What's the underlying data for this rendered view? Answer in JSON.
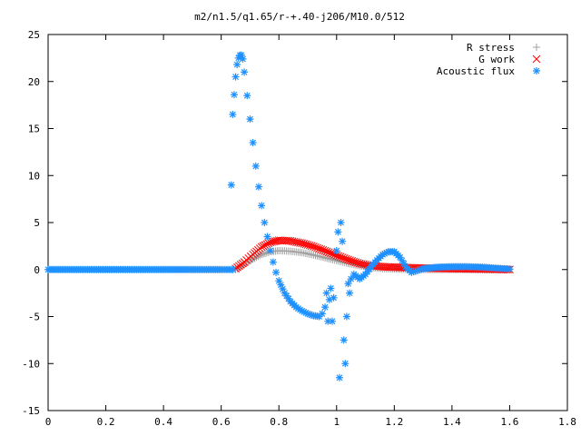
{
  "chart_data": {
    "type": "scatter",
    "title": "m2/n1.5/q1.65/r-+.40-j206/M10.0/512",
    "xlabel": "",
    "ylabel": "",
    "xlim": [
      0,
      1.8
    ],
    "ylim": [
      -15,
      25
    ],
    "xticks": [
      "0",
      "0.2",
      "0.4",
      "0.6",
      "0.8",
      "1",
      "1.2",
      "1.4",
      "1.6",
      "1.8"
    ],
    "yticks": [
      "-15",
      "-10",
      "-5",
      "0",
      "5",
      "10",
      "15",
      "20",
      "25"
    ],
    "legend_position": "top-right",
    "series": [
      {
        "name": "R stress",
        "marker": "plus",
        "color": "#a0a0a0",
        "points": [
          [
            0.65,
            0.0
          ],
          [
            0.68,
            0.5
          ],
          [
            0.71,
            1.1
          ],
          [
            0.74,
            1.6
          ],
          [
            0.77,
            1.9
          ],
          [
            0.8,
            2.0
          ],
          [
            0.84,
            1.95
          ],
          [
            0.88,
            1.8
          ],
          [
            0.92,
            1.55
          ],
          [
            0.96,
            1.25
          ],
          [
            1.0,
            0.95
          ],
          [
            1.04,
            0.65
          ],
          [
            1.08,
            0.4
          ],
          [
            1.12,
            0.2
          ],
          [
            1.16,
            0.1
          ],
          [
            1.2,
            0.05
          ],
          [
            1.25,
            0.02
          ],
          [
            1.3,
            0.0
          ],
          [
            1.4,
            0.0
          ],
          [
            1.5,
            0.0
          ],
          [
            1.6,
            0.0
          ]
        ]
      },
      {
        "name": "G work",
        "marker": "cross",
        "color": "#ff0000",
        "points": [
          [
            0.65,
            0.1
          ],
          [
            0.68,
            0.8
          ],
          [
            0.71,
            1.6
          ],
          [
            0.74,
            2.4
          ],
          [
            0.77,
            2.9
          ],
          [
            0.8,
            3.1
          ],
          [
            0.84,
            3.05
          ],
          [
            0.88,
            2.8
          ],
          [
            0.92,
            2.45
          ],
          [
            0.96,
            2.0
          ],
          [
            1.0,
            1.5
          ],
          [
            1.04,
            1.05
          ],
          [
            1.08,
            0.65
          ],
          [
            1.12,
            0.4
          ],
          [
            1.16,
            0.3
          ],
          [
            1.2,
            0.25
          ],
          [
            1.25,
            0.2
          ],
          [
            1.3,
            0.15
          ],
          [
            1.4,
            0.1
          ],
          [
            1.5,
            0.05
          ],
          [
            1.6,
            0.0
          ]
        ]
      },
      {
        "name": "Acoustic flux",
        "marker": "star",
        "color": "#1e90ff",
        "points": [
          [
            0.0,
            0.0
          ],
          [
            0.05,
            0.0
          ],
          [
            0.1,
            0.0
          ],
          [
            0.15,
            0.0
          ],
          [
            0.2,
            0.0
          ],
          [
            0.25,
            0.0
          ],
          [
            0.3,
            0.0
          ],
          [
            0.35,
            0.0
          ],
          [
            0.4,
            0.0
          ],
          [
            0.45,
            0.0
          ],
          [
            0.5,
            0.0
          ],
          [
            0.55,
            0.0
          ],
          [
            0.6,
            0.0
          ],
          [
            0.64,
            0.0
          ],
          [
            0.635,
            9.0
          ],
          [
            0.64,
            16.5
          ],
          [
            0.645,
            18.6
          ],
          [
            0.65,
            20.5
          ],
          [
            0.655,
            21.8
          ],
          [
            0.66,
            22.5
          ],
          [
            0.665,
            22.8
          ],
          [
            0.67,
            22.8
          ],
          [
            0.675,
            22.4
          ],
          [
            0.68,
            21.0
          ],
          [
            0.69,
            18.5
          ],
          [
            0.7,
            16.0
          ],
          [
            0.71,
            13.5
          ],
          [
            0.72,
            11.0
          ],
          [
            0.73,
            8.8
          ],
          [
            0.74,
            6.8
          ],
          [
            0.75,
            5.0
          ],
          [
            0.76,
            3.5
          ],
          [
            0.77,
            2.0
          ],
          [
            0.78,
            0.8
          ],
          [
            0.79,
            -0.3
          ],
          [
            0.8,
            -1.2
          ],
          [
            0.82,
            -2.5
          ],
          [
            0.84,
            -3.4
          ],
          [
            0.86,
            -4.0
          ],
          [
            0.88,
            -4.4
          ],
          [
            0.9,
            -4.7
          ],
          [
            0.92,
            -4.9
          ],
          [
            0.94,
            -5.0
          ],
          [
            0.95,
            -4.7
          ],
          [
            0.96,
            -4.0
          ],
          [
            0.965,
            -2.5
          ],
          [
            0.97,
            -5.5
          ],
          [
            0.975,
            -3.2
          ],
          [
            0.98,
            -2.0
          ],
          [
            0.985,
            -5.5
          ],
          [
            0.99,
            -3.0
          ],
          [
            1.0,
            2.0
          ],
          [
            1.005,
            4.0
          ],
          [
            1.01,
            -11.5
          ],
          [
            1.015,
            5.0
          ],
          [
            1.02,
            3.0
          ],
          [
            1.025,
            -7.5
          ],
          [
            1.03,
            -10.0
          ],
          [
            1.035,
            -5.0
          ],
          [
            1.04,
            -1.5
          ],
          [
            1.045,
            -2.5
          ],
          [
            1.05,
            -1.0
          ],
          [
            1.06,
            -0.5
          ],
          [
            1.08,
            -1.0
          ],
          [
            1.1,
            -0.5
          ],
          [
            1.12,
            0.3
          ],
          [
            1.14,
            1.0
          ],
          [
            1.16,
            1.6
          ],
          [
            1.18,
            1.9
          ],
          [
            1.2,
            1.9
          ],
          [
            1.22,
            1.3
          ],
          [
            1.24,
            0.3
          ],
          [
            1.26,
            -0.3
          ],
          [
            1.28,
            -0.1
          ],
          [
            1.3,
            0.1
          ],
          [
            1.35,
            0.25
          ],
          [
            1.4,
            0.3
          ],
          [
            1.45,
            0.3
          ],
          [
            1.5,
            0.25
          ],
          [
            1.55,
            0.15
          ],
          [
            1.6,
            0.05
          ]
        ]
      }
    ]
  }
}
